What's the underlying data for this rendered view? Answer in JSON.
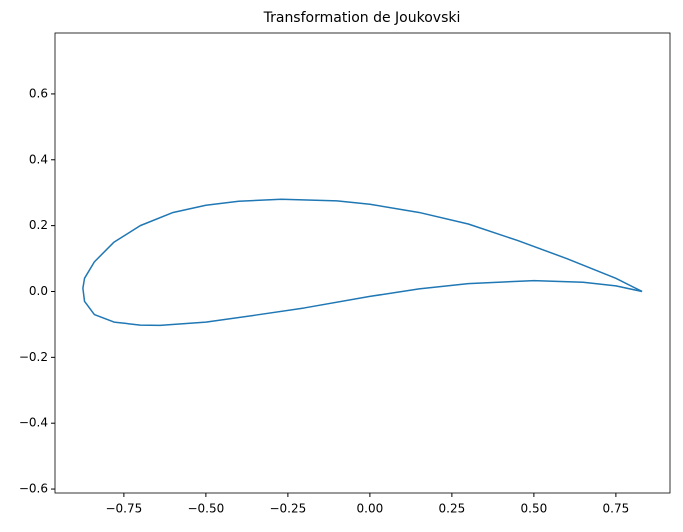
{
  "chart_data": {
    "type": "line",
    "title": "Transformation de Joukovski",
    "color": "#1f77b4",
    "x": [
      0.83,
      0.75,
      0.6,
      0.45,
      0.3,
      0.15,
      0.0,
      -0.1,
      -0.27,
      -0.4,
      -0.5,
      -0.6,
      -0.7,
      -0.78,
      -0.84,
      -0.87,
      -0.875,
      -0.87,
      -0.84,
      -0.78,
      -0.7,
      -0.64,
      -0.5,
      -0.35,
      -0.2,
      0.0,
      0.15,
      0.3,
      0.5,
      0.65,
      0.75,
      0.83
    ],
    "values": [
      0.0,
      0.04,
      0.1,
      0.155,
      0.205,
      0.24,
      0.265,
      0.275,
      0.28,
      0.274,
      0.262,
      0.24,
      0.2,
      0.15,
      0.09,
      0.04,
      0.01,
      -0.03,
      -0.07,
      -0.093,
      -0.102,
      -0.103,
      -0.093,
      -0.072,
      -0.05,
      -0.015,
      0.008,
      0.024,
      0.033,
      0.028,
      0.017,
      0.0
    ],
    "xlim": [
      -0.96,
      0.915
    ],
    "ylim": [
      -0.612,
      0.785
    ],
    "xticks": [
      {
        "value": -0.75,
        "label": "−0.75"
      },
      {
        "value": -0.5,
        "label": "−0.50"
      },
      {
        "value": -0.25,
        "label": "−0.25"
      },
      {
        "value": 0,
        "label": "0.00"
      },
      0.25,
      {
        "value": 0.5,
        "label": "0.50"
      },
      0.75
    ],
    "yticks": [
      {
        "value": -0.6,
        "label": "−0.6"
      },
      {
        "value": -0.4,
        "label": "−0.4"
      },
      {
        "value": -0.2,
        "label": "−0.2"
      },
      {
        "value": 0,
        "label": "0.0"
      },
      0.2,
      0.4,
      0.6
    ],
    "grid": false
  }
}
